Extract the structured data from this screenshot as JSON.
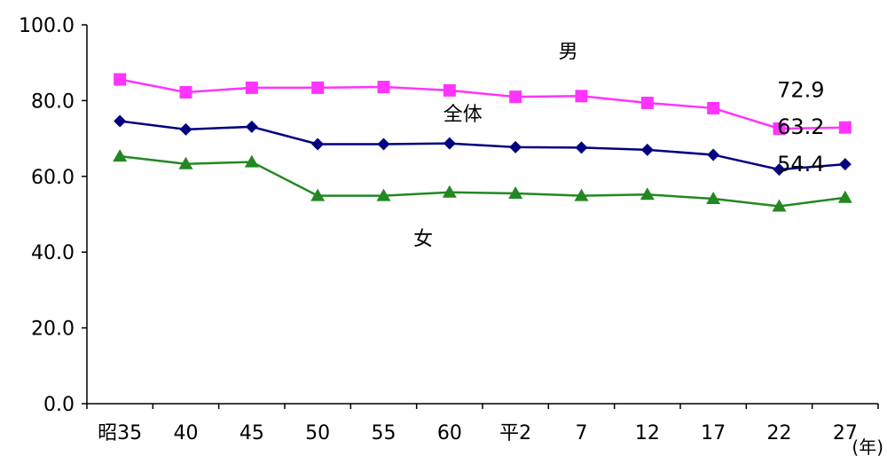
{
  "chart_data": {
    "type": "line",
    "title": "",
    "xlabel": "",
    "ylabel": "",
    "x_unit": "(年)",
    "categories": [
      "昭35",
      "40",
      "45",
      "50",
      "55",
      "60",
      "平2",
      "7",
      "12",
      "17",
      "22",
      "27"
    ],
    "ylim": [
      0,
      100
    ],
    "yticks": [
      "0.0",
      "20.0",
      "40.0",
      "60.0",
      "80.0",
      "100.0"
    ],
    "grid": false,
    "legend": "none",
    "series": [
      {
        "key": "male",
        "name": "男",
        "color": "#ff33ff",
        "marker": "square",
        "values": [
          85.6,
          82.2,
          83.4,
          83.4,
          83.6,
          82.7,
          81.0,
          81.2,
          79.4,
          78.0,
          72.6,
          72.9
        ],
        "end_label": "72.9"
      },
      {
        "key": "total",
        "name": "全体",
        "color": "#000080",
        "marker": "diamond",
        "values": [
          74.6,
          72.4,
          73.1,
          68.5,
          68.5,
          68.7,
          67.7,
          67.6,
          67.0,
          65.7,
          61.8,
          63.2
        ],
        "end_label": "63.2"
      },
      {
        "key": "female",
        "name": "女",
        "color": "#228822",
        "marker": "triangle",
        "values": [
          65.3,
          63.3,
          63.8,
          54.9,
          54.9,
          55.8,
          55.5,
          54.9,
          55.2,
          54.1,
          52.1,
          54.4
        ],
        "end_label": "54.4"
      }
    ]
  }
}
